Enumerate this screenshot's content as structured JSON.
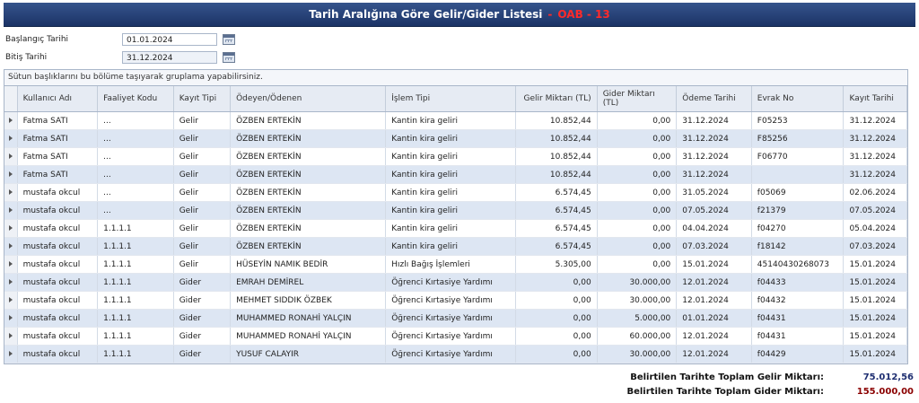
{
  "header": {
    "title": "Tarih Aralığına Göre Gelir/Gider Listesi",
    "separator": "-",
    "code": "OAB - 13"
  },
  "filters": {
    "start_label": "Başlangıç Tarihi",
    "start_value": "01.01.2024",
    "end_label": "Bitiş Tarihi",
    "end_value": "31.12.2024"
  },
  "grid": {
    "group_hint": "Sütun başlıklarını bu bölüme taşıyarak gruplama yapabilirsiniz.",
    "columns": [
      "Kullanıcı Adı",
      "Faaliyet Kodu",
      "Kayıt Tipi",
      "Ödeyen/Ödenen",
      "İşlem Tipi",
      "Gelir Miktarı (TL)",
      "Gider Miktarı (TL)",
      "Ödeme Tarihi",
      "Evrak No",
      "Kayıt Tarihi"
    ],
    "rows": [
      [
        "Fatma SATI",
        "...",
        "Gelir",
        "ÖZBEN ERTEKİN",
        "Kantin kira geliri",
        "10.852,44",
        "0,00",
        "31.12.2024",
        "F05253",
        "31.12.2024"
      ],
      [
        "Fatma SATI",
        "...",
        "Gelir",
        "ÖZBEN ERTEKİN",
        "Kantin kira geliri",
        "10.852,44",
        "0,00",
        "31.12.2024",
        "F85256",
        "31.12.2024"
      ],
      [
        "Fatma SATI",
        "...",
        "Gelir",
        "ÖZBEN ERTEKİN",
        "Kantin kira geliri",
        "10.852,44",
        "0,00",
        "31.12.2024",
        "F06770",
        "31.12.2024"
      ],
      [
        "Fatma SATI",
        "...",
        "Gelir",
        "ÖZBEN ERTEKİN",
        "Kantin kira geliri",
        "10.852,44",
        "0,00",
        "31.12.2024",
        "",
        "31.12.2024"
      ],
      [
        "mustafa okcul",
        "...",
        "Gelir",
        "ÖZBEN ERTEKİN",
        "Kantin kira geliri",
        "6.574,45",
        "0,00",
        "31.05.2024",
        "f05069",
        "02.06.2024"
      ],
      [
        "mustafa okcul",
        "...",
        "Gelir",
        "ÖZBEN ERTEKİN",
        "Kantin kira geliri",
        "6.574,45",
        "0,00",
        "07.05.2024",
        "f21379",
        "07.05.2024"
      ],
      [
        "mustafa okcul",
        "1.1.1.1",
        "Gelir",
        "ÖZBEN ERTEKİN",
        "Kantin kira geliri",
        "6.574,45",
        "0,00",
        "04.04.2024",
        "f04270",
        "05.04.2024"
      ],
      [
        "mustafa okcul",
        "1.1.1.1",
        "Gelir",
        "ÖZBEN ERTEKİN",
        "Kantin kira geliri",
        "6.574,45",
        "0,00",
        "07.03.2024",
        "f18142",
        "07.03.2024"
      ],
      [
        "mustafa okcul",
        "1.1.1.1",
        "Gelir",
        "HÜSEYİN NAMIK BEDİR",
        "Hızlı Bağış İşlemleri",
        "5.305,00",
        "0,00",
        "15.01.2024",
        "45140430268073",
        "15.01.2024"
      ],
      [
        "mustafa okcul",
        "1.1.1.1",
        "Gider",
        "EMRAH DEMİREL",
        "Öğrenci Kırtasiye Yardımı",
        "0,00",
        "30.000,00",
        "12.01.2024",
        "f04433",
        "15.01.2024"
      ],
      [
        "mustafa okcul",
        "1.1.1.1",
        "Gider",
        "MEHMET SIDDIK ÖZBEK",
        "Öğrenci Kırtasiye Yardımı",
        "0,00",
        "30.000,00",
        "12.01.2024",
        "f04432",
        "15.01.2024"
      ],
      [
        "mustafa okcul",
        "1.1.1.1",
        "Gider",
        "MUHAMMED RONAHİ YALÇIN",
        "Öğrenci Kırtasiye Yardımı",
        "0,00",
        "5.000,00",
        "01.01.2024",
        "f04431",
        "15.01.2024"
      ],
      [
        "mustafa okcul",
        "1.1.1.1",
        "Gider",
        "MUHAMMED RONAHİ YALÇIN",
        "Öğrenci Kırtasiye Yardımı",
        "0,00",
        "60.000,00",
        "12.01.2024",
        "f04431",
        "15.01.2024"
      ],
      [
        "mustafa okcul",
        "1.1.1.1",
        "Gider",
        "YUSUF CALAYIR",
        "Öğrenci Kırtasiye Yardımı",
        "0,00",
        "30.000,00",
        "12.01.2024",
        "f04429",
        "15.01.2024"
      ]
    ]
  },
  "totals": {
    "income_label": "Belirtilen Tarihte Toplam Gelir Miktarı:",
    "income_value": "75.012,56",
    "expense_label": "Belirtilen Tarihte Toplam Gider Miktarı:",
    "expense_value": "155.000,00"
  },
  "colors": {
    "title_bg": "#23407a",
    "code_red": "#ff2a2a",
    "row_alt": "#dde6f3",
    "expense_total": "#8b0000",
    "income_total": "#1d2d70"
  }
}
